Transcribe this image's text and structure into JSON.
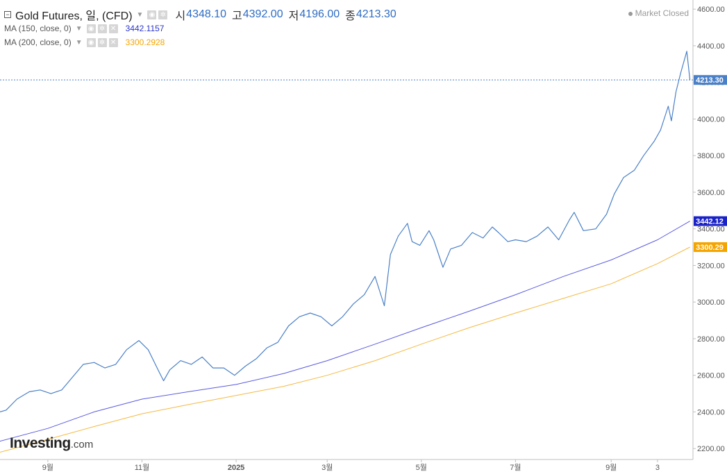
{
  "header": {
    "symbol_title": "Gold Futures, 일, (CFD)",
    "ohlc": [
      {
        "label": "시",
        "value": "4348.10"
      },
      {
        "label": "고",
        "value": "4392.00"
      },
      {
        "label": "저",
        "value": "4196.00"
      },
      {
        "label": "종",
        "value": "4213.30"
      }
    ],
    "indicators": [
      {
        "label": "MA (150, close, 0)",
        "value": "3442.1157"
      },
      {
        "label": "MA (200, close, 0)",
        "value": "3300.2928"
      }
    ],
    "market_status": "Market Closed",
    "icons": [
      "eye-icon",
      "gear-icon",
      "close-icon",
      "chevron-down-icon"
    ]
  },
  "logo": {
    "brand": "Investing",
    "suffix": ".com"
  },
  "colors": {
    "price": "#4a80c8",
    "ma150": "#5a5ae0",
    "ma200": "#f5b940",
    "price_tag": "#4a80c8",
    "ma150_tag": "#1a22c8",
    "ma200_tag": "#f5a500"
  },
  "chart_data": {
    "type": "line",
    "title": "Gold Futures, 일, (CFD)",
    "xlabel": "",
    "ylabel": "",
    "ylim": [
      2140,
      4650
    ],
    "x_range": [
      "2024-08-01",
      "2025-10-24"
    ],
    "grid": false,
    "y_ticks": [
      "2200.00",
      "2400.00",
      "2600.00",
      "2800.00",
      "3000.00",
      "3200.00",
      "3400.00",
      "3600.00",
      "3800.00",
      "4000.00",
      "4200.00",
      "4400.00",
      "4600.00"
    ],
    "x_ticks": [
      {
        "date": "2024-09-01",
        "label": "9월"
      },
      {
        "date": "2024-11-01",
        "label": "11월"
      },
      {
        "date": "2025-01-01",
        "label": "2025"
      },
      {
        "date": "2025-03-01",
        "label": "3월"
      },
      {
        "date": "2025-05-01",
        "label": "5월"
      },
      {
        "date": "2025-07-01",
        "label": "7월"
      },
      {
        "date": "2025-09-01",
        "label": "9월"
      },
      {
        "date": "2025-10-01",
        "label": "3"
      }
    ],
    "last_price": {
      "value": 4213.3,
      "label": "4213.30"
    },
    "series": [
      {
        "id": "price",
        "name": "Gold Futures",
        "tag": "4213.30",
        "points": [
          [
            "2024-08-01",
            2400
          ],
          [
            "2024-08-05",
            2410
          ],
          [
            "2024-08-12",
            2470
          ],
          [
            "2024-08-20",
            2510
          ],
          [
            "2024-08-27",
            2520
          ],
          [
            "2024-09-03",
            2500
          ],
          [
            "2024-09-10",
            2520
          ],
          [
            "2024-09-17",
            2590
          ],
          [
            "2024-09-24",
            2660
          ],
          [
            "2024-10-01",
            2670
          ],
          [
            "2024-10-08",
            2640
          ],
          [
            "2024-10-15",
            2660
          ],
          [
            "2024-10-22",
            2740
          ],
          [
            "2024-10-30",
            2790
          ],
          [
            "2024-11-05",
            2740
          ],
          [
            "2024-11-12",
            2620
          ],
          [
            "2024-11-15",
            2570
          ],
          [
            "2024-11-19",
            2630
          ],
          [
            "2024-11-26",
            2680
          ],
          [
            "2024-12-03",
            2660
          ],
          [
            "2024-12-10",
            2700
          ],
          [
            "2024-12-17",
            2640
          ],
          [
            "2024-12-24",
            2640
          ],
          [
            "2024-12-31",
            2600
          ],
          [
            "2025-01-07",
            2650
          ],
          [
            "2025-01-14",
            2690
          ],
          [
            "2025-01-21",
            2750
          ],
          [
            "2025-01-28",
            2780
          ],
          [
            "2025-02-04",
            2870
          ],
          [
            "2025-02-11",
            2920
          ],
          [
            "2025-02-18",
            2940
          ],
          [
            "2025-02-25",
            2920
          ],
          [
            "2025-03-04",
            2870
          ],
          [
            "2025-03-11",
            2920
          ],
          [
            "2025-03-18",
            2990
          ],
          [
            "2025-03-25",
            3040
          ],
          [
            "2025-04-01",
            3140
          ],
          [
            "2025-04-07",
            2980
          ],
          [
            "2025-04-11",
            3260
          ],
          [
            "2025-04-16",
            3360
          ],
          [
            "2025-04-22",
            3430
          ],
          [
            "2025-04-25",
            3330
          ],
          [
            "2025-04-30",
            3310
          ],
          [
            "2025-05-06",
            3390
          ],
          [
            "2025-05-09",
            3340
          ],
          [
            "2025-05-15",
            3190
          ],
          [
            "2025-05-20",
            3290
          ],
          [
            "2025-05-27",
            3310
          ],
          [
            "2025-06-03",
            3380
          ],
          [
            "2025-06-10",
            3350
          ],
          [
            "2025-06-16",
            3410
          ],
          [
            "2025-06-20",
            3380
          ],
          [
            "2025-06-26",
            3330
          ],
          [
            "2025-07-01",
            3340
          ],
          [
            "2025-07-08",
            3330
          ],
          [
            "2025-07-15",
            3360
          ],
          [
            "2025-07-22",
            3410
          ],
          [
            "2025-07-29",
            3340
          ],
          [
            "2025-08-05",
            3450
          ],
          [
            "2025-08-08",
            3490
          ],
          [
            "2025-08-14",
            3390
          ],
          [
            "2025-08-22",
            3400
          ],
          [
            "2025-08-29",
            3480
          ],
          [
            "2025-09-03",
            3590
          ],
          [
            "2025-09-09",
            3680
          ],
          [
            "2025-09-16",
            3720
          ],
          [
            "2025-09-22",
            3800
          ],
          [
            "2025-09-29",
            3880
          ],
          [
            "2025-10-03",
            3940
          ],
          [
            "2025-10-08",
            4070
          ],
          [
            "2025-10-10",
            3990
          ],
          [
            "2025-10-13",
            4150
          ],
          [
            "2025-10-16",
            4250
          ],
          [
            "2025-10-20",
            4370
          ],
          [
            "2025-10-22",
            4213.3
          ]
        ]
      },
      {
        "id": "ma150",
        "name": "MA (150, close, 0)",
        "tag": "3442.12",
        "points": [
          [
            "2024-08-01",
            2240
          ],
          [
            "2024-09-01",
            2310
          ],
          [
            "2024-10-01",
            2400
          ],
          [
            "2024-11-01",
            2470
          ],
          [
            "2024-12-01",
            2510
          ],
          [
            "2025-01-01",
            2550
          ],
          [
            "2025-02-01",
            2610
          ],
          [
            "2025-03-01",
            2680
          ],
          [
            "2025-04-01",
            2770
          ],
          [
            "2025-05-01",
            2860
          ],
          [
            "2025-06-01",
            2950
          ],
          [
            "2025-07-01",
            3040
          ],
          [
            "2025-08-01",
            3140
          ],
          [
            "2025-09-01",
            3230
          ],
          [
            "2025-10-01",
            3340
          ],
          [
            "2025-10-22",
            3442.12
          ]
        ]
      },
      {
        "id": "ma200",
        "name": "MA (200, close, 0)",
        "tag": "3300.29",
        "points": [
          [
            "2024-08-01",
            2180
          ],
          [
            "2024-09-01",
            2250
          ],
          [
            "2024-10-01",
            2320
          ],
          [
            "2024-11-01",
            2390
          ],
          [
            "2024-12-01",
            2440
          ],
          [
            "2025-01-01",
            2490
          ],
          [
            "2025-02-01",
            2540
          ],
          [
            "2025-03-01",
            2600
          ],
          [
            "2025-04-01",
            2680
          ],
          [
            "2025-05-01",
            2770
          ],
          [
            "2025-06-01",
            2860
          ],
          [
            "2025-07-01",
            2940
          ],
          [
            "2025-08-01",
            3020
          ],
          [
            "2025-09-01",
            3100
          ],
          [
            "2025-10-01",
            3210
          ],
          [
            "2025-10-22",
            3300.29
          ]
        ]
      }
    ]
  }
}
